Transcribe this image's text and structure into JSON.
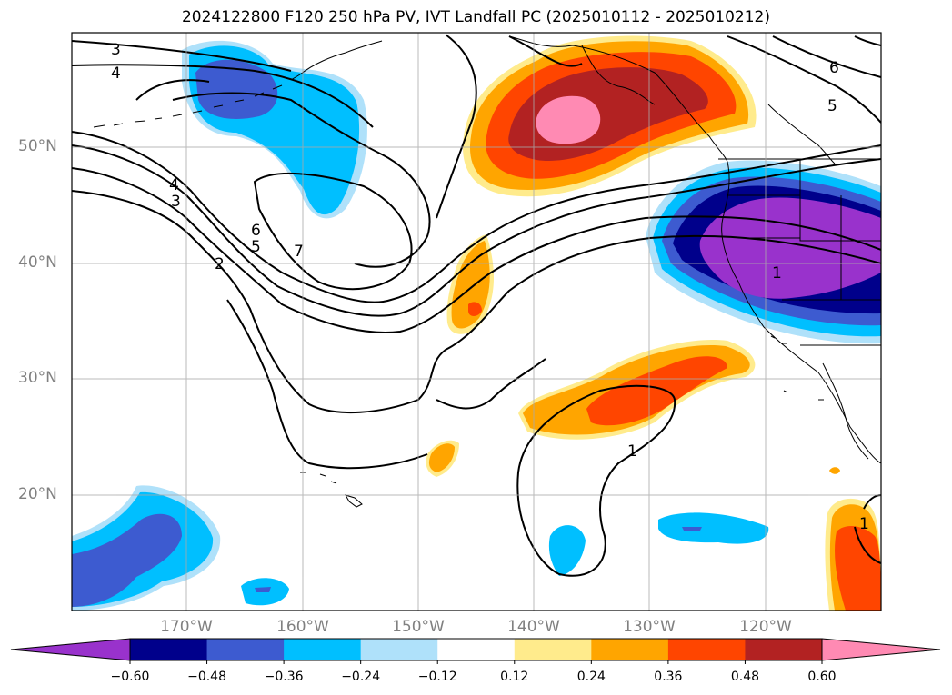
{
  "title": "2024122800 F120 250 hPa PV, IVT Landfall PC (2025010112 - 2025010212)",
  "latitude_labels": [
    "50°N",
    "40°N",
    "30°N",
    "20°N"
  ],
  "longitude_labels": [
    "170°W",
    "160°W",
    "150°W",
    "140°W",
    "130°W",
    "120°W"
  ],
  "contour_labels": [
    "3",
    "4",
    "4",
    "3",
    "6",
    "5",
    "7",
    "2",
    "6",
    "5",
    "1",
    "1",
    "1"
  ],
  "colorbar": {
    "colors": [
      "#9932cc",
      "#00008b",
      "#3d5bd0",
      "#00bfff",
      "#afe1fa",
      "#ffffff",
      "#ffeb8c",
      "#ffa500",
      "#ff4500",
      "#b22222",
      "#ff8ab3"
    ],
    "tick_labels": [
      "−0.60",
      "−0.48",
      "−0.36",
      "−0.24",
      "−0.12",
      "0.12",
      "0.24",
      "0.36",
      "0.48",
      "0.60"
    ]
  }
}
